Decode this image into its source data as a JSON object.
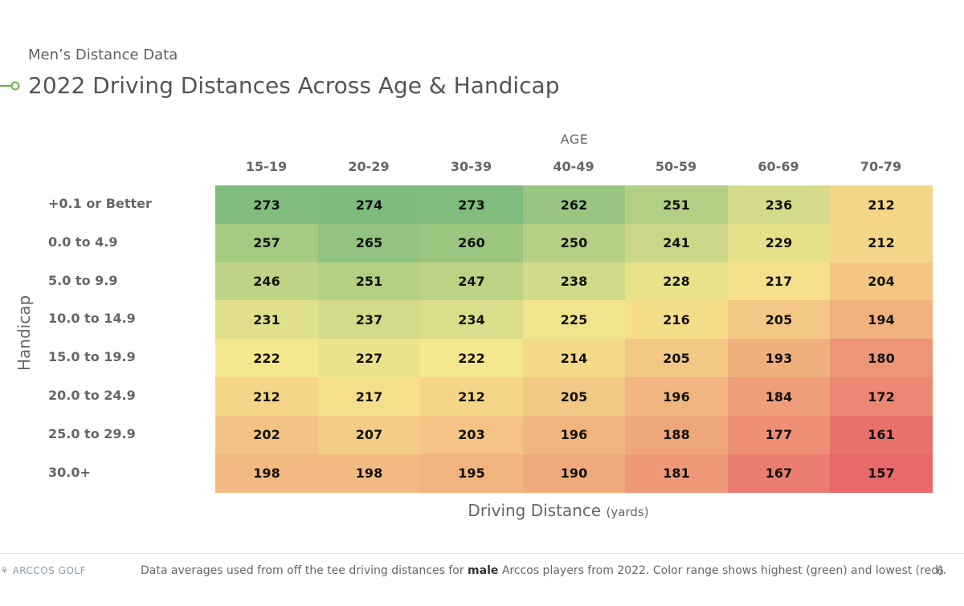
{
  "header": {
    "subtitle": "Men’s Distance Data",
    "title": "2022 Driving Distances Across Age & Handicap"
  },
  "chart_data": {
    "type": "heatmap",
    "title": "2022 Driving Distances Across Age & Handicap",
    "xlabel_top": "AGE",
    "ylabel": "Handicap",
    "xlabel_bottom": "Driving Distance",
    "xlabel_bottom_unit": "(yards)",
    "columns": [
      "15-19",
      "20-29",
      "30-39",
      "40-49",
      "50-59",
      "60-69",
      "70-79"
    ],
    "rows": [
      "+0.1 or Better",
      "0.0 to 4.9",
      "5.0 to 9.9",
      "10.0 to 14.9",
      "15.0 to 19.9",
      "20.0 to 24.9",
      "25.0 to 29.9",
      "30.0+"
    ],
    "values": [
      [
        273,
        274,
        273,
        262,
        251,
        236,
        212
      ],
      [
        257,
        265,
        260,
        250,
        241,
        229,
        212
      ],
      [
        246,
        251,
        247,
        238,
        228,
        217,
        204
      ],
      [
        231,
        237,
        234,
        225,
        216,
        205,
        194
      ],
      [
        222,
        227,
        222,
        214,
        205,
        193,
        180
      ],
      [
        212,
        217,
        212,
        205,
        196,
        184,
        172
      ],
      [
        202,
        207,
        203,
        196,
        188,
        177,
        161
      ],
      [
        198,
        198,
        195,
        190,
        181,
        167,
        157
      ]
    ],
    "color_scale": {
      "high": "#7dbb7d",
      "mid": "#f7e88d",
      "low": "#e8696a"
    }
  },
  "footer": {
    "logo": "ARCCOS GOLF",
    "note_before": "Data averages used from off the tee driving distances for ",
    "note_bold": "male",
    "note_after": " Arccos players from 2022. Color range shows highest (green) and lowest (red).",
    "page_number": "6"
  },
  "colors": {
    "accent": "#6ab04c"
  }
}
